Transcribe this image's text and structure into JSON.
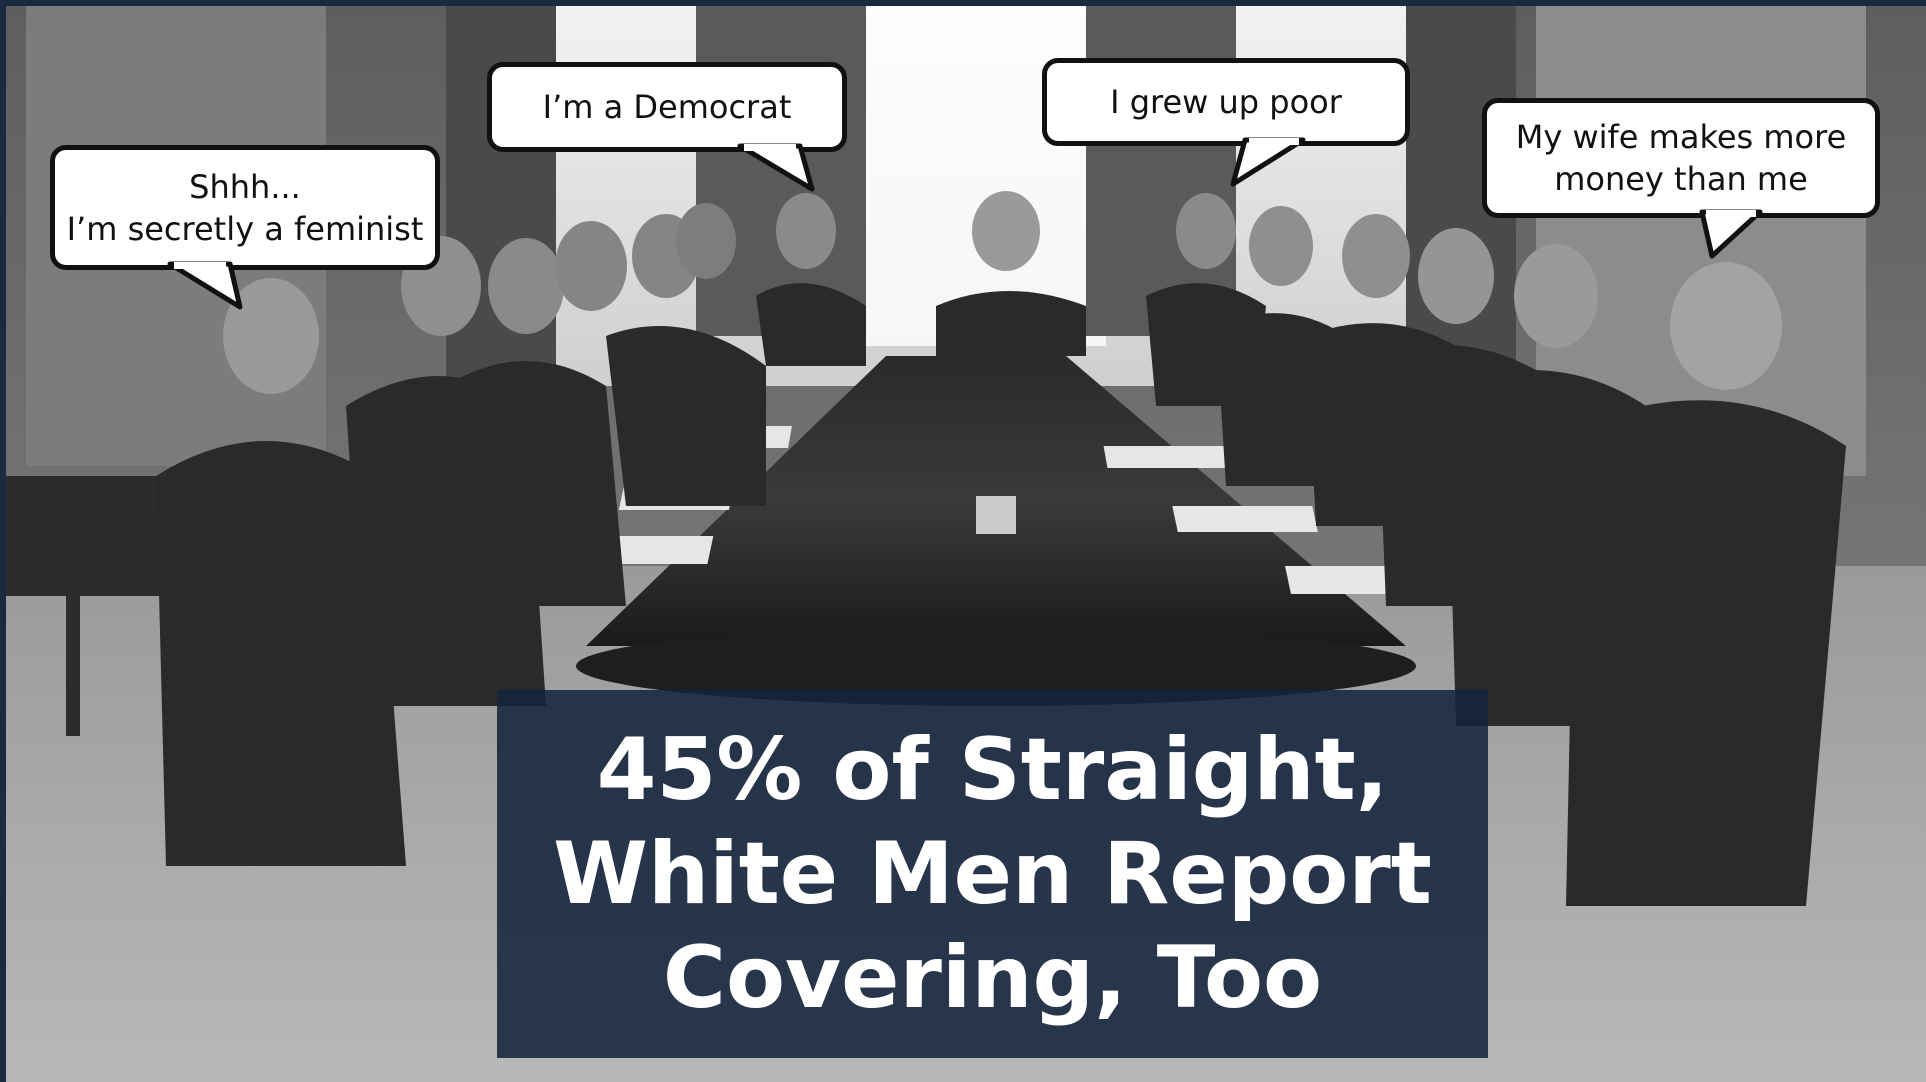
{
  "bubbles": [
    {
      "id": "feminist",
      "lines": [
        "Shhh...",
        "I’m secretly a feminist"
      ]
    },
    {
      "id": "democrat",
      "lines": [
        "I’m a Democrat"
      ]
    },
    {
      "id": "poor",
      "lines": [
        "I grew up poor"
      ]
    },
    {
      "id": "wife",
      "lines": [
        "My wife makes more",
        "money than me"
      ]
    }
  ],
  "caption": {
    "lines": [
      "45% of Straight,",
      "White Men Report",
      "Covering, Too"
    ]
  },
  "colors": {
    "caption_bg": "#14243e",
    "frame": "#1c2a40"
  }
}
